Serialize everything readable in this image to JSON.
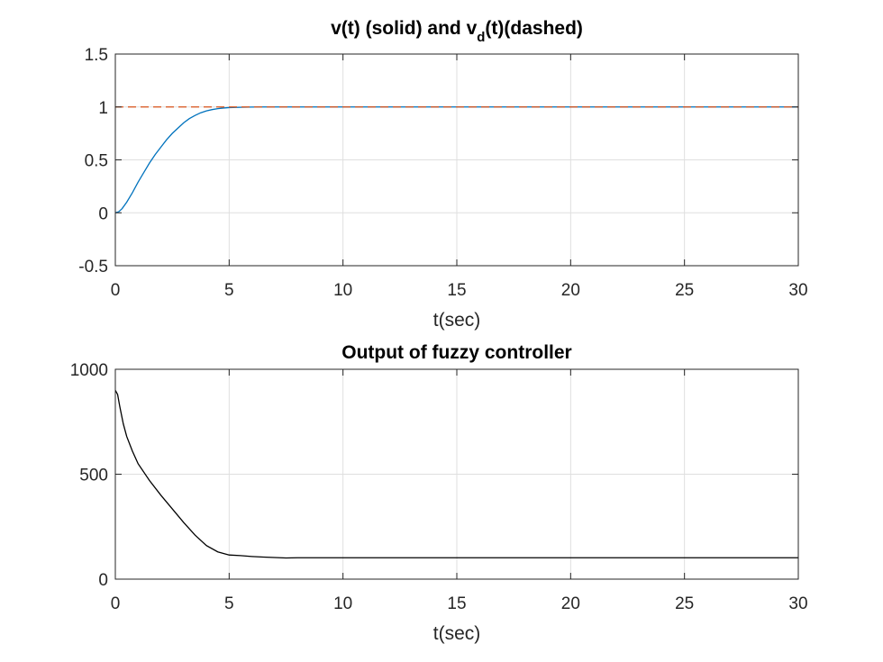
{
  "chart_data": [
    {
      "type": "line",
      "title_main": "v(t) (solid) and v",
      "title_sub": "d",
      "title_tail": "(t)(dashed)",
      "xlabel": "t(sec)",
      "ylabel": "",
      "xlim": [
        0,
        30
      ],
      "ylim": [
        -0.5,
        1.5
      ],
      "xticks": [
        0,
        5,
        10,
        15,
        20,
        25,
        30
      ],
      "xtick_labels": [
        "0",
        "5",
        "10",
        "15",
        "20",
        "25",
        "30"
      ],
      "yticks": [
        -0.5,
        0,
        0.5,
        1,
        1.5
      ],
      "ytick_labels": [
        "-0.5",
        "0",
        "0.5",
        "1",
        "1.5"
      ],
      "grid": true,
      "series": [
        {
          "style": "solid",
          "color": "#0072BD",
          "x": [
            0,
            0.15,
            0.3,
            0.5,
            0.75,
            1.0,
            1.25,
            1.5,
            1.75,
            2.0,
            2.25,
            2.5,
            2.75,
            3.0,
            3.25,
            3.5,
            3.75,
            4.0,
            4.25,
            4.5,
            4.75,
            5.0,
            5.5,
            6.0,
            6.5,
            7.0,
            8.0,
            10,
            15,
            20,
            25,
            30
          ],
          "y": [
            0.0,
            0.01,
            0.04,
            0.1,
            0.19,
            0.29,
            0.38,
            0.47,
            0.55,
            0.62,
            0.69,
            0.75,
            0.8,
            0.85,
            0.89,
            0.92,
            0.945,
            0.963,
            0.975,
            0.984,
            0.99,
            0.994,
            0.997,
            0.999,
            1.0,
            1.0,
            1.0,
            1.0,
            1.0,
            1.0,
            1.0,
            1.0
          ]
        },
        {
          "style": "dashed",
          "color": "#D95319",
          "x": [
            0,
            30
          ],
          "y": [
            1,
            1
          ]
        }
      ]
    },
    {
      "type": "line",
      "title": "Output of fuzzy controller",
      "xlabel": "t(sec)",
      "ylabel": "",
      "xlim": [
        0,
        30
      ],
      "ylim": [
        0,
        1000
      ],
      "xticks": [
        0,
        5,
        10,
        15,
        20,
        25,
        30
      ],
      "xtick_labels": [
        "0",
        "5",
        "10",
        "15",
        "20",
        "25",
        "30"
      ],
      "yticks": [
        0,
        500,
        1000
      ],
      "ytick_labels": [
        "0",
        "500",
        "1000"
      ],
      "grid": true,
      "series": [
        {
          "style": "solid",
          "color": "#000000",
          "x": [
            0,
            0.1,
            0.2,
            0.35,
            0.5,
            0.75,
            1.0,
            1.5,
            2.0,
            2.5,
            3.0,
            3.5,
            4.0,
            4.5,
            5.0,
            5.5,
            6.0,
            6.5,
            7.0,
            7.5,
            8.0,
            9.0,
            10,
            15,
            20,
            25,
            30
          ],
          "y": [
            900,
            880,
            820,
            740,
            680,
            610,
            550,
            470,
            400,
            335,
            270,
            210,
            160,
            130,
            115,
            112,
            108,
            105,
            103,
            101,
            102,
            102,
            102,
            102,
            102,
            102,
            102
          ]
        }
      ]
    }
  ]
}
